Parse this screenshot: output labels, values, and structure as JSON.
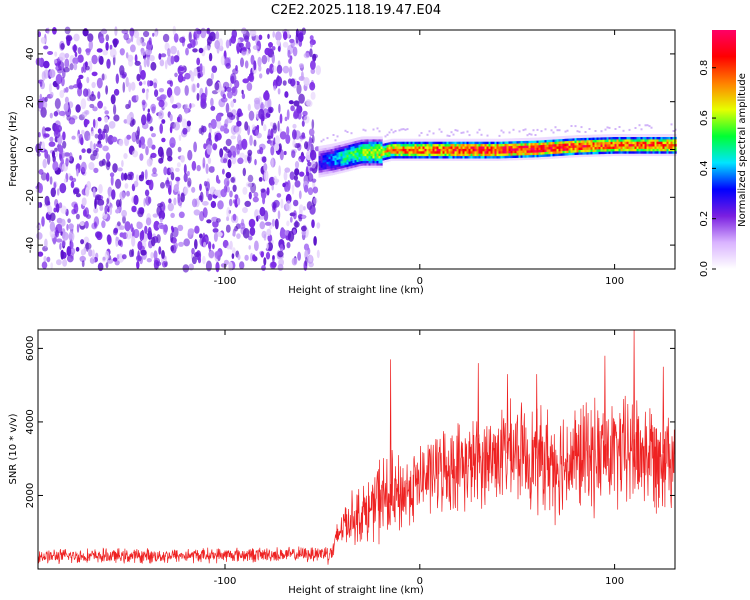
{
  "figure_title": "C2E2.2025.118.19.47.E04",
  "chart_data": [
    {
      "type": "heatmap",
      "title": "C2E2.2025.118.19.47.E04",
      "xlabel": "Height of straight line (km)",
      "ylabel": "Frequency (Hz)",
      "xlim": [
        -196,
        131
      ],
      "ylim": [
        -50,
        50
      ],
      "x_ticks": [
        -100,
        0,
        100
      ],
      "x_tick_labels": [
        "-100",
        "0",
        "100"
      ],
      "y_ticks": [
        -40,
        -20,
        0,
        20,
        40
      ],
      "y_tick_labels": [
        "-40",
        "-20",
        "0",
        "20",
        "40"
      ],
      "grid": false,
      "noise_region_x": [
        -196,
        -52
      ],
      "signal_track": {
        "x": [
          -52,
          -45,
          -40,
          -35,
          -30,
          -25,
          -20,
          -15,
          -10,
          -5,
          0,
          20,
          40,
          60,
          80,
          100,
          131
        ],
        "freq_center": [
          -5,
          -4,
          -3,
          -2,
          -1,
          -1,
          -1,
          0,
          0,
          0,
          0,
          0,
          0,
          0.5,
          1.5,
          2,
          2
        ],
        "amplitude": [
          0.3,
          0.4,
          0.5,
          0.55,
          0.6,
          0.65,
          0.7,
          0.75,
          0.8,
          0.85,
          0.85,
          0.9,
          0.95,
          0.95,
          0.9,
          0.85,
          0.85
        ]
      },
      "colorbar": {
        "label": "Normalized spectral amplitude",
        "range": [
          0,
          0.95
        ],
        "ticks": [
          0,
          0.2,
          0.4,
          0.6,
          0.8
        ],
        "tick_labels": [
          "0.0",
          "0.2",
          "0.4",
          "0.6",
          "0.8"
        ],
        "colors": [
          "#ffffff",
          "#d9b3ff",
          "#7a1fe0",
          "#0000ff",
          "#00e5ff",
          "#00ff33",
          "#e6ff00",
          "#ff8000",
          "#ff0000",
          "#ff0066"
        ]
      }
    },
    {
      "type": "line",
      "xlabel": "Height of straight line (km)",
      "ylabel": "SNR (10 * v/v)",
      "xlim": [
        -196,
        131
      ],
      "ylim": [
        0,
        6500
      ],
      "x_ticks": [
        -100,
        0,
        100
      ],
      "x_tick_labels": [
        "-100",
        "0",
        "100"
      ],
      "y_ticks": [
        2000,
        4000,
        6000
      ],
      "y_tick_labels": [
        "2000",
        "4000",
        "6000"
      ],
      "grid": false,
      "series": [
        {
          "color": "#ee2222",
          "envelope": {
            "x": [
              -196,
              -150,
              -100,
              -60,
              -45,
              -40,
              -35,
              -30,
              -25,
              -20,
              -15,
              -10,
              -5,
              0,
              10,
              20,
              30,
              40,
              50,
              60,
              70,
              80,
              90,
              100,
              110,
              120,
              131
            ],
            "mean": [
              350,
              350,
              380,
              400,
              450,
              1200,
              1400,
              1500,
              1600,
              2000,
              1800,
              2000,
              2200,
              2400,
              2700,
              2800,
              2900,
              3100,
              3200,
              3000,
              2900,
              3000,
              3100,
              3100,
              3200,
              3100,
              3200
            ],
            "spread": [
              200,
              200,
              200,
              200,
              300,
              600,
              700,
              800,
              900,
              1200,
              1300,
              1100,
              1000,
              1000,
              1100,
              1200,
              1200,
              1300,
              1300,
              1400,
              1500,
              1500,
              1500,
              1500,
              1600,
              1500,
              1400
            ]
          },
          "peaks": [
            {
              "x": -15,
              "y": 5700
            },
            {
              "x": 30,
              "y": 5600
            },
            {
              "x": 45,
              "y": 5300
            },
            {
              "x": 60,
              "y": 5300
            },
            {
              "x": 95,
              "y": 5800
            },
            {
              "x": 110,
              "y": 6500
            },
            {
              "x": 125,
              "y": 5500
            }
          ]
        }
      ]
    }
  ]
}
